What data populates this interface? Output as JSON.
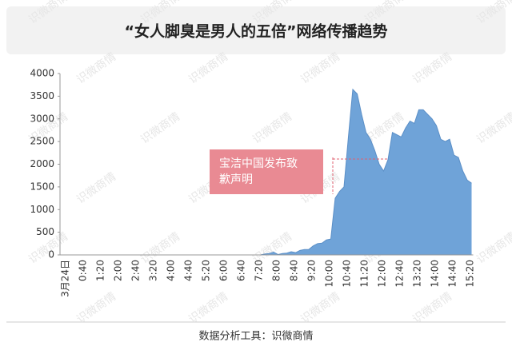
{
  "chart_data": {
    "type": "area",
    "title": "“女人脚臭是男人的五倍”网络传播趋势",
    "footer": "数据分析工具：识微商情",
    "watermark": "识微商情",
    "annotation": [
      "宝洁中国发布致",
      "歉声明"
    ],
    "color": "#6fa3d8",
    "grid": false,
    "ylim": [
      0,
      4000
    ],
    "yticks": [
      0,
      500,
      1000,
      1500,
      2000,
      2500,
      3000,
      3500,
      4000
    ],
    "categories": [
      "3月24日",
      null,
      null,
      null,
      "0:40",
      null,
      null,
      null,
      "1:20",
      null,
      null,
      null,
      "2:00",
      null,
      null,
      null,
      "2:40",
      null,
      null,
      null,
      "3:20",
      null,
      null,
      null,
      "4:00",
      null,
      null,
      null,
      "4:40",
      null,
      null,
      null,
      "5:20",
      null,
      null,
      null,
      "6:00",
      null,
      null,
      null,
      "6:40",
      null,
      null,
      null,
      "7:20",
      null,
      null,
      null,
      "8:00",
      null,
      null,
      null,
      "8:40",
      null,
      null,
      null,
      "9:20",
      null,
      null,
      null,
      "10:00",
      null,
      null,
      null,
      "10:40",
      null,
      null,
      null,
      "11:20",
      null,
      null,
      null,
      "12:00",
      null,
      null,
      null,
      "12:40",
      null,
      null,
      null,
      "13:20",
      null,
      null,
      null,
      "14:00",
      null,
      null,
      null,
      "14:40",
      null,
      null,
      null,
      "15:20",
      null
    ],
    "values": [
      0,
      0,
      0,
      0,
      0,
      0,
      0,
      0,
      0,
      0,
      0,
      0,
      0,
      0,
      0,
      0,
      0,
      0,
      0,
      0,
      0,
      0,
      0,
      0,
      0,
      0,
      0,
      0,
      0,
      0,
      0,
      0,
      0,
      0,
      0,
      0,
      0,
      0,
      0,
      0,
      0,
      0,
      0,
      0,
      0,
      0,
      20,
      30,
      60,
      10,
      30,
      40,
      70,
      50,
      100,
      120,
      120,
      200,
      250,
      260,
      330,
      350,
      1250,
      1400,
      1500,
      2600,
      3650,
      3550,
      3100,
      2700,
      2550,
      2300,
      2000,
      1850,
      2100,
      2700,
      2650,
      2600,
      2800,
      2950,
      2900,
      3200,
      3200,
      3100,
      3000,
      2850,
      2550,
      2500,
      2550,
      2200,
      2150,
      1850,
      1650,
      1580
    ]
  }
}
